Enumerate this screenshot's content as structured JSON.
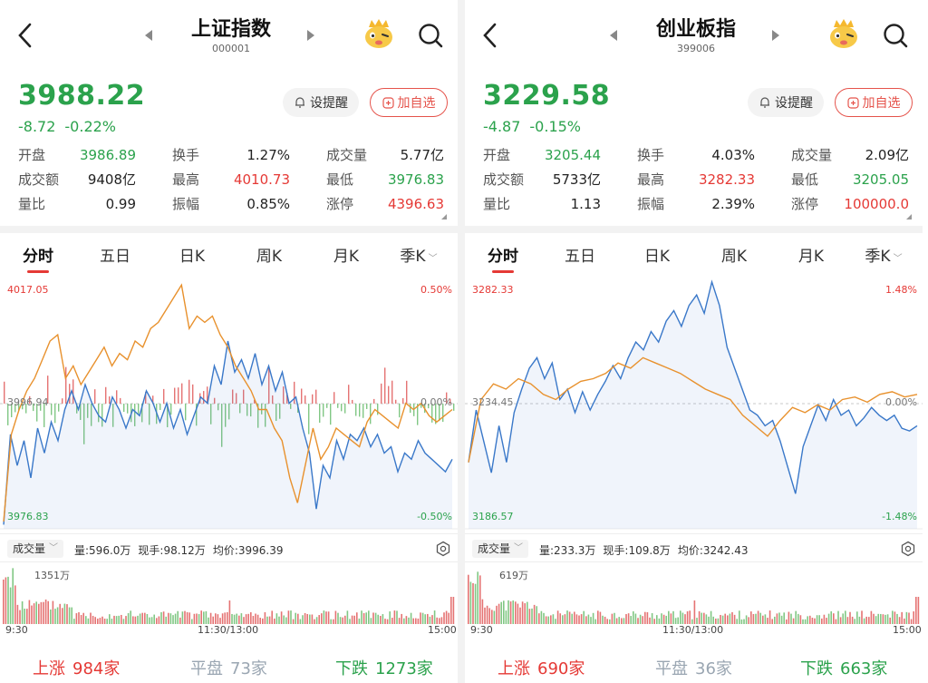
{
  "panels": [
    {
      "title": "上证指数",
      "code": "000001",
      "price": "3988.22",
      "change": "-8.72",
      "change_pct": "-0.22%",
      "remind_label": "设提醒",
      "add_label": "加自选",
      "stats": [
        {
          "label": "开盘",
          "value": "3986.89",
          "color": "green"
        },
        {
          "label": "换手",
          "value": "1.27%",
          "color": "normal"
        },
        {
          "label": "成交量",
          "value": "5.77亿",
          "color": "normal"
        },
        {
          "label": "成交额",
          "value": "9408亿",
          "color": "normal"
        },
        {
          "label": "最高",
          "value": "4010.73",
          "color": "red"
        },
        {
          "label": "最低",
          "value": "3976.83",
          "color": "green"
        },
        {
          "label": "量比",
          "value": "0.99",
          "color": "normal"
        },
        {
          "label": "振幅",
          "value": "0.85%",
          "color": "normal"
        },
        {
          "label": "涨停",
          "value": "4396.63",
          "color": "red"
        }
      ],
      "tabs": [
        "分时",
        "五日",
        "日K",
        "周K",
        "月K",
        "季K"
      ],
      "chart_labels": {
        "top_left": "4017.05",
        "mid_left": "3996.94",
        "bottom_left": "3976.83",
        "top_right": "0.50%",
        "mid_right": "0.00%",
        "bottom_right": "-0.50%"
      },
      "volume_tab": "成交量",
      "volume_info": {
        "vol": "量:596.0万",
        "current": "现手:98.12万",
        "avg": "均价:3996.39"
      },
      "volume_max": "1351万",
      "time_labels": [
        "9:30",
        "11:30/13:00",
        "15:00"
      ],
      "breadth": {
        "up_label": "上涨",
        "up": "984家",
        "flat_label": "平盘",
        "flat": "73家",
        "down_label": "下跌",
        "down": "1273家"
      }
    },
    {
      "title": "创业板指",
      "code": "399006",
      "price": "3229.58",
      "change": "-4.87",
      "change_pct": "-0.15%",
      "remind_label": "设提醒",
      "add_label": "加自选",
      "stats": [
        {
          "label": "开盘",
          "value": "3205.44",
          "color": "green"
        },
        {
          "label": "换手",
          "value": "4.03%",
          "color": "normal"
        },
        {
          "label": "成交量",
          "value": "2.09亿",
          "color": "normal"
        },
        {
          "label": "成交额",
          "value": "5733亿",
          "color": "normal"
        },
        {
          "label": "最高",
          "value": "3282.33",
          "color": "red"
        },
        {
          "label": "最低",
          "value": "3205.05",
          "color": "green"
        },
        {
          "label": "量比",
          "value": "1.13",
          "color": "normal"
        },
        {
          "label": "振幅",
          "value": "2.39%",
          "color": "normal"
        },
        {
          "label": "涨停",
          "value": "100000.0",
          "color": "red"
        }
      ],
      "tabs": [
        "分时",
        "五日",
        "日K",
        "周K",
        "月K",
        "季K"
      ],
      "chart_labels": {
        "top_left": "3282.33",
        "mid_left": "3234.45",
        "bottom_left": "3186.57",
        "top_right": "1.48%",
        "mid_right": "0.00%",
        "bottom_right": "-1.48%"
      },
      "volume_tab": "成交量",
      "volume_info": {
        "vol": "量:233.3万",
        "current": "现手:109.8万",
        "avg": "均价:3242.43"
      },
      "volume_max": "619万",
      "time_labels": [
        "9:30",
        "11:30/13:00",
        "15:00"
      ],
      "breadth": {
        "up_label": "上涨",
        "up": "690家",
        "flat_label": "平盘",
        "flat": "36家",
        "down_label": "下跌",
        "down": "663家"
      }
    }
  ],
  "colors": {
    "up": "#e53935",
    "down": "#2ba24c",
    "price_line": "#3a78c9",
    "avg_line": "#e8912d"
  },
  "chart_data": [
    {
      "type": "line",
      "title": "上证指数",
      "ylim": [
        3976.83,
        4017.05
      ],
      "base": 3996.94,
      "series": [
        {
          "values": [
            3977.5,
            3992,
            3987,
            3991,
            3985,
            3993,
            3989,
            3994,
            3991,
            3996,
            3999,
            3996,
            4000,
            3997,
            3995,
            3994,
            3998,
            3996,
            3993,
            3996,
            3995,
            3999,
            3997,
            3994,
            3997,
            3993,
            3996,
            3992,
            3995,
            3998,
            3997,
            4003,
            4000,
            4007,
            4002,
            4004,
            4001,
            4005,
            4000,
            4003,
            3999,
            4002,
            3997,
            3998,
            3993,
            3989,
            3980,
            3987,
            3985,
            3991,
            3988,
            3992,
            3991,
            3993,
            3990,
            3992,
            3989,
            3990,
            3986,
            3989,
            3988,
            3991,
            3989,
            3988,
            3987,
            3986,
            3988
          ]
        },
        {
          "values": [
            3978,
            3992,
            3996,
            3999,
            4001,
            4004,
            4007,
            4008,
            4001,
            4003,
            4000,
            4002,
            4004,
            4006,
            4003,
            4005,
            4004,
            4007,
            4006,
            4009,
            4010,
            4012,
            4014,
            4016,
            4009,
            4011,
            4010,
            4011,
            4008,
            4006,
            4003,
            4001,
            3999,
            3996,
            3996,
            3993,
            3991,
            3985,
            3981,
            3987,
            3993,
            3988,
            3990,
            3993,
            3992,
            3991,
            3990,
            3994,
            3996,
            3995,
            3994,
            3993,
            3997,
            3996,
            3997,
            3995,
            3994,
            3995,
            3996
          ]
        }
      ]
    },
    {
      "type": "line",
      "title": "创业板指",
      "ylim": [
        3186.57,
        3282.33
      ],
      "base": 3234.45,
      "series": [
        {
          "values": [
            3212,
            3232,
            3220,
            3208,
            3226,
            3212,
            3231,
            3240,
            3248,
            3252,
            3244,
            3250,
            3236,
            3240,
            3231,
            3239,
            3232,
            3238,
            3243,
            3249,
            3244,
            3252,
            3258,
            3255,
            3262,
            3258,
            3266,
            3270,
            3264,
            3272,
            3276,
            3269,
            3281,
            3272,
            3256,
            3248,
            3240,
            3232,
            3230,
            3226,
            3228,
            3220,
            3210,
            3200,
            3218,
            3226,
            3234,
            3228,
            3236,
            3230,
            3232,
            3226,
            3229,
            3233,
            3230,
            3228,
            3230,
            3225,
            3224,
            3226
          ]
        },
        {
          "values": [
            3212,
            3236,
            3242,
            3240,
            3244,
            3242,
            3238,
            3236,
            3240,
            3243,
            3244,
            3246,
            3250,
            3248,
            3252,
            3250,
            3248,
            3246,
            3243,
            3240,
            3238,
            3236,
            3230,
            3226,
            3222,
            3228,
            3233,
            3231,
            3234,
            3232,
            3236,
            3237,
            3235,
            3238,
            3239,
            3237,
            3238
          ]
        }
      ]
    }
  ]
}
